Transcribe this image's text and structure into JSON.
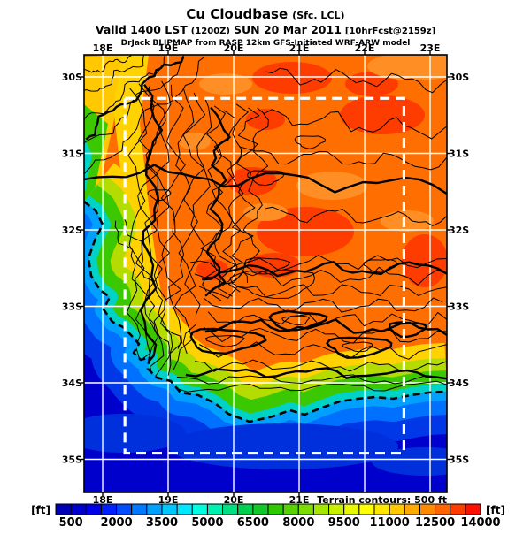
{
  "title": {
    "main": "Cu Cloudbase",
    "main_suffix": "(Sfc. LCL)",
    "valid_prefix": "Valid 1400 LST",
    "valid_zulu": "(1200Z)",
    "valid_date": "SUN 20 Mar 2011",
    "valid_fcst": "[10hrFcst@2159z]",
    "model_line": "DrJack BLIPMAP from RASP 12km GFS-Initiated WRF-ARW model"
  },
  "map": {
    "note": "Terrain contours: 500 ft",
    "lon_tick_values": [
      18,
      19,
      20,
      21,
      22,
      23
    ],
    "lon_tick_labels_top": [
      "18E",
      "19E",
      "20E",
      "21E",
      "22E",
      "23E"
    ],
    "lon_tick_labels_bottom": [
      "18E",
      "19E",
      "20E",
      "21E"
    ],
    "lat_tick_values": [
      30,
      31,
      32,
      33,
      34,
      35
    ],
    "lat_tick_labels_left": [
      "30S",
      "31S",
      "32S",
      "33S",
      "34S",
      "35S"
    ],
    "lat_tick_labels_right": [
      "30S",
      "31S",
      "32S",
      "33S",
      "34S",
      "35S"
    ],
    "grid_color": "#ffffff",
    "inner_domain_color": "#ffffff",
    "contour_color": "#000000",
    "coastline_color": "#000000"
  },
  "colorbar": {
    "unit_left": "[ft]",
    "unit_right": "[ft]",
    "labels": [
      "500",
      "2000",
      "3500",
      "5000",
      "6500",
      "8000",
      "9500",
      "11000",
      "12500",
      "14000"
    ],
    "min_ft": 0,
    "max_ft": 14000,
    "step_ft": 500,
    "colors": [
      "#0000B4",
      "#0000CD",
      "#0000E8",
      "#0020FF",
      "#004CFF",
      "#0078FF",
      "#00A0FF",
      "#00C8FF",
      "#00E8FF",
      "#00FFE0",
      "#00F0B0",
      "#00E080",
      "#00D050",
      "#10C828",
      "#30C800",
      "#55D200",
      "#7DDC00",
      "#A5E600",
      "#C8EE00",
      "#E8F800",
      "#FFFF00",
      "#FFE600",
      "#FFC800",
      "#FFA800",
      "#FF8A00",
      "#FF6400",
      "#FF3C00",
      "#FF0F00"
    ]
  },
  "chart_data": {
    "type": "heatmap",
    "title": "Cu Cloudbase (Sfc. LCL)",
    "units": "ft",
    "valid_time": "1400 LST (1200Z) SUN 20 Mar 2011",
    "forecast": "10hrFcst@2159z",
    "model": "DrJack BLIPMAP from RASP 12km GFS-Initiated WRF-ARW model",
    "lon_range_deg_E": [
      17.72,
      23.26
    ],
    "lat_range_deg_S": [
      29.71,
      35.43
    ],
    "grid_interval_deg": 1,
    "inner_domain_lon_E": [
      18.34,
      22.6
    ],
    "inner_domain_lat_S": [
      30.28,
      34.92
    ],
    "terrain_contour_interval_ft": 500,
    "colorbar_levels_ft": [
      0,
      500,
      1000,
      1500,
      2000,
      2500,
      3000,
      3500,
      4000,
      4500,
      5000,
      5500,
      6000,
      6500,
      7000,
      7500,
      8000,
      8500,
      9000,
      9500,
      10000,
      10500,
      11000,
      11500,
      12000,
      12500,
      13000,
      13500,
      14000
    ],
    "regions": [
      {
        "area": "ocean (Atlantic, west and south of coast)",
        "cloudbase_ft": [
          500,
          2500
        ]
      },
      {
        "area": "immediate coastal strip on land",
        "cloudbase_ft": [
          2500,
          5000
        ]
      },
      {
        "area": "west-coast belt / coastal plain",
        "cloudbase_ft": [
          5000,
          8000
        ]
      },
      {
        "area": "western mountains (yellow band, dense terrain contours)",
        "cloudbase_ft": [
          8000,
          9500
        ]
      },
      {
        "area": "interior plateau north-east (orange)",
        "cloudbase_ft": [
          10500,
          12000
        ]
      },
      {
        "area": "hottest interior patches (red)",
        "cloudbase_ft": [
          12000,
          13500
        ]
      },
      {
        "area": "south-coast green/yellow belt",
        "cloudbase_ft": [
          3500,
          8000
        ]
      }
    ]
  }
}
